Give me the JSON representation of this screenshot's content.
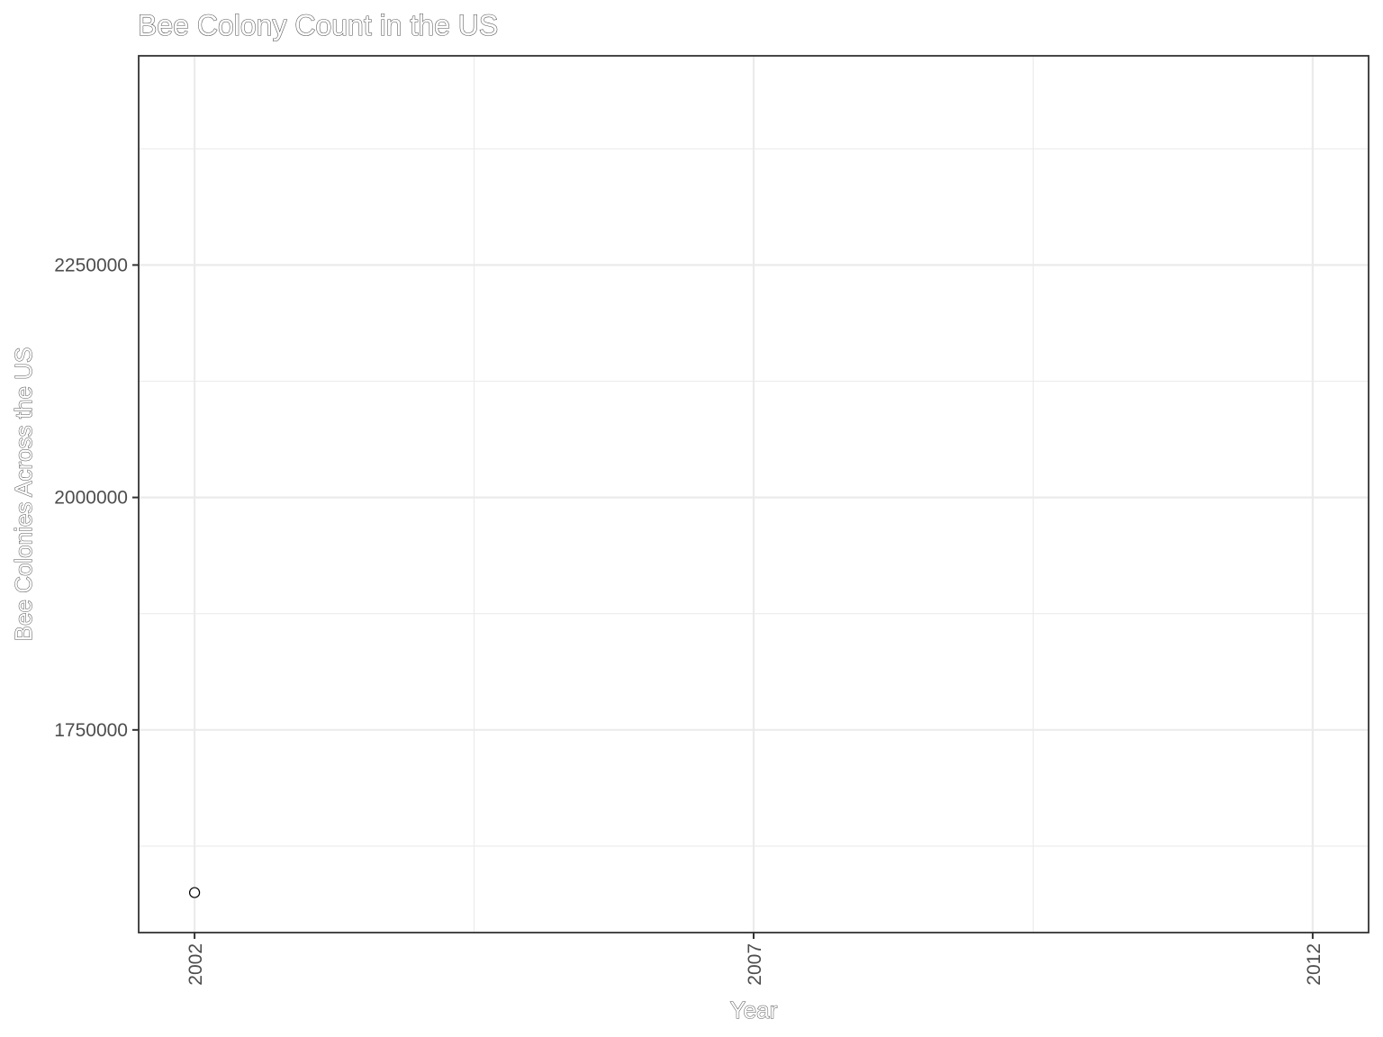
{
  "chart_data": {
    "type": "scatter",
    "title": "Bee Colony Count in the US",
    "xlabel": "Year",
    "ylabel": "Bee Colonies Across the US",
    "x_ticks": [
      "2002",
      "2007",
      "2012"
    ],
    "y_ticks": [
      "1750000",
      "2000000",
      "2250000"
    ],
    "xlim": [
      2001.5,
      2012.5
    ],
    "ylim": [
      1532000,
      2475000
    ],
    "grid": true,
    "legend": "none",
    "series": [
      {
        "x": [
          2002
        ],
        "y": [
          1575000
        ]
      }
    ]
  }
}
